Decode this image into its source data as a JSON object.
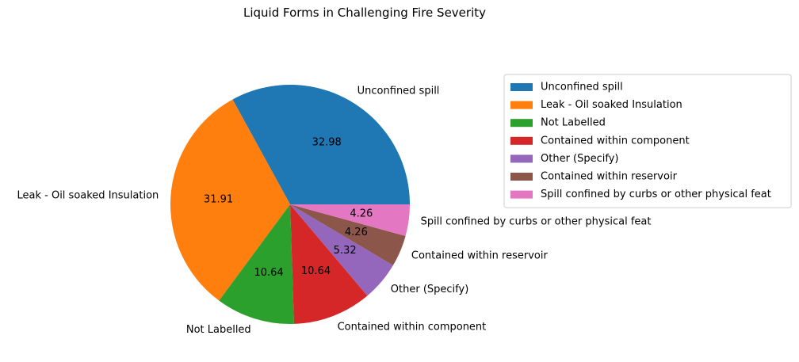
{
  "chart_data": {
    "type": "pie",
    "title": "Liquid Forms in Challenging Fire Severity",
    "labels": [
      "Unconfined spill",
      "Leak - Oil soaked Insulation",
      "Not Labelled",
      "Contained within component",
      "Other (Specify)",
      "Contained within reservoir",
      "Spill confined by curbs or other physical feat"
    ],
    "values": [
      32.98,
      31.91,
      10.64,
      10.64,
      5.32,
      4.26,
      4.26
    ],
    "value_labels": [
      "32.98",
      "31.91",
      "10.64",
      "10.64",
      "5.32",
      "4.26",
      "4.26"
    ],
    "colors": [
      "#1f77b4",
      "#ff7f0e",
      "#2ca02c",
      "#d62728",
      "#9467bd",
      "#8c564b",
      "#e377c2"
    ],
    "start_angle_deg": 0,
    "direction": "counterclockwise",
    "legend": {
      "placement": "right",
      "entries": [
        "Unconfined spill",
        "Leak - Oil soaked Insulation",
        "Not Labelled",
        "Contained within component",
        "Other (Specify)",
        "Contained within reservoir",
        "Spill confined by curbs or other physical feat"
      ]
    }
  }
}
